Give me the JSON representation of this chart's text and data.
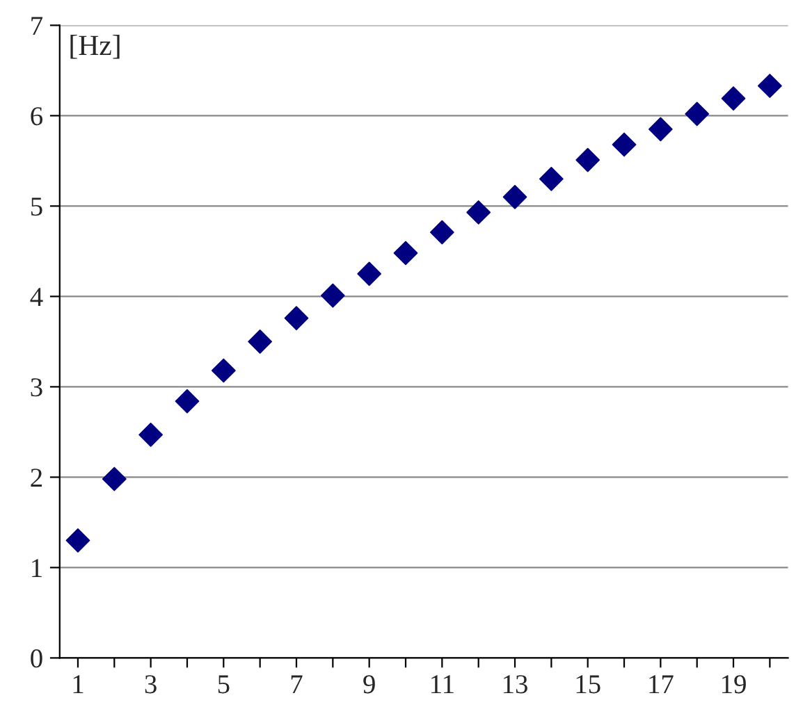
{
  "chart_data": {
    "type": "scatter",
    "ylabel": "[Hz]",
    "categories": [
      "1",
      null,
      "3",
      null,
      "5",
      null,
      "7",
      null,
      "9",
      null,
      "11",
      null,
      "13",
      null,
      "15",
      null,
      "17",
      null,
      "19",
      null
    ],
    "series": [
      {
        "color": "#000080",
        "values": [
          1.3,
          1.98,
          2.47,
          2.84,
          3.18,
          3.5,
          3.76,
          4.01,
          4.25,
          4.48,
          4.71,
          4.93,
          5.1,
          5.3,
          5.51,
          5.68,
          5.85,
          6.02,
          6.19,
          6.33
        ]
      }
    ],
    "ylim": [
      0,
      7
    ],
    "yticks": [
      0,
      1,
      2,
      3,
      4,
      5,
      6,
      7
    ],
    "grid": "y",
    "marker": "diamond"
  }
}
